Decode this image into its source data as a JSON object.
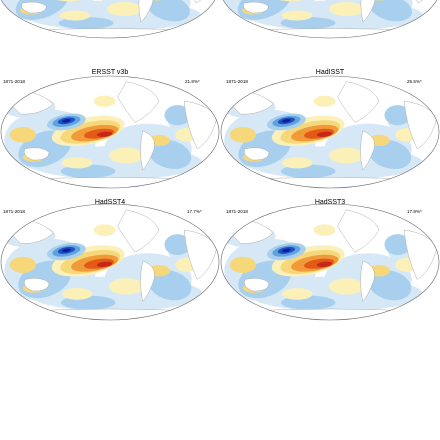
{
  "panels": [
    {
      "title": "",
      "period": "",
      "stat": ""
    },
    {
      "title": "",
      "period": "",
      "stat": ""
    },
    {
      "title": "ERSST v3b",
      "period": "1871-2018",
      "stat": "21.8%*"
    },
    {
      "title": "HadISST",
      "period": "1871-2018",
      "stat": "25.5%*"
    },
    {
      "title": "HadSST4",
      "period": "1871-2018",
      "stat": "17.7%*"
    },
    {
      "title": "HadSST3",
      "period": "1871-2018",
      "stat": "17.8%*"
    }
  ],
  "colors": {
    "ocean": "#ffffff",
    "land": "#ffffff",
    "coast": "#9a9a9a",
    "pale_blue": "#d6e8f6",
    "light_blue": "#a8d0ee",
    "mid_blue": "#5ea3dd",
    "deep_blue": "#1f4fc4",
    "navy": "#141c9e",
    "pale_yellow": "#fbf1b8",
    "yellow": "#f6d87a",
    "orange": "#f09a3a",
    "dark_orange": "#e35a16",
    "red": "#c7271b"
  }
}
